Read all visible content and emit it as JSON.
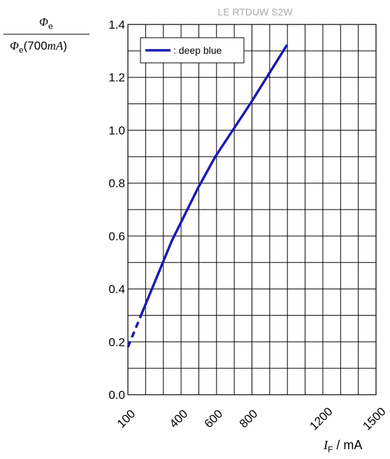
{
  "chart_data": {
    "type": "line",
    "title": "LE RTDUW S2W",
    "ylabel_numerator": "Φ",
    "ylabel_numerator_sub": "e",
    "ylabel_denominator": "Φ",
    "ylabel_denominator_sub": "e",
    "ylabel_denominator_rest": "(700",
    "ylabel_denominator_unit": "mA",
    "ylabel_denominator_close": ")",
    "xlabel_symbol": "I",
    "xlabel_sub": "F",
    "xlabel_unit": " / mA",
    "x_ticks": [
      "100",
      "400",
      "600",
      "800",
      "1200",
      "1500"
    ],
    "y_ticks": [
      "0.0",
      "0.2",
      "0.4",
      "0.6",
      "0.8",
      "1.0",
      "1.2",
      "1.4"
    ],
    "ylim": [
      0,
      1.4
    ],
    "grid": true,
    "legend_position": "top-left",
    "series": [
      {
        "name": ": deep blue",
        "color": "#1a1ab4",
        "dashed_x": [
          100,
          175
        ],
        "dashed_y": [
          0.18,
          0.3
        ],
        "x": [
          175,
          250,
          350,
          500,
          600,
          700,
          800,
          900,
          1000
        ],
        "y": [
          0.3,
          0.42,
          0.58,
          0.78,
          0.9,
          1.0,
          1.1,
          1.21,
          1.32
        ]
      }
    ]
  }
}
